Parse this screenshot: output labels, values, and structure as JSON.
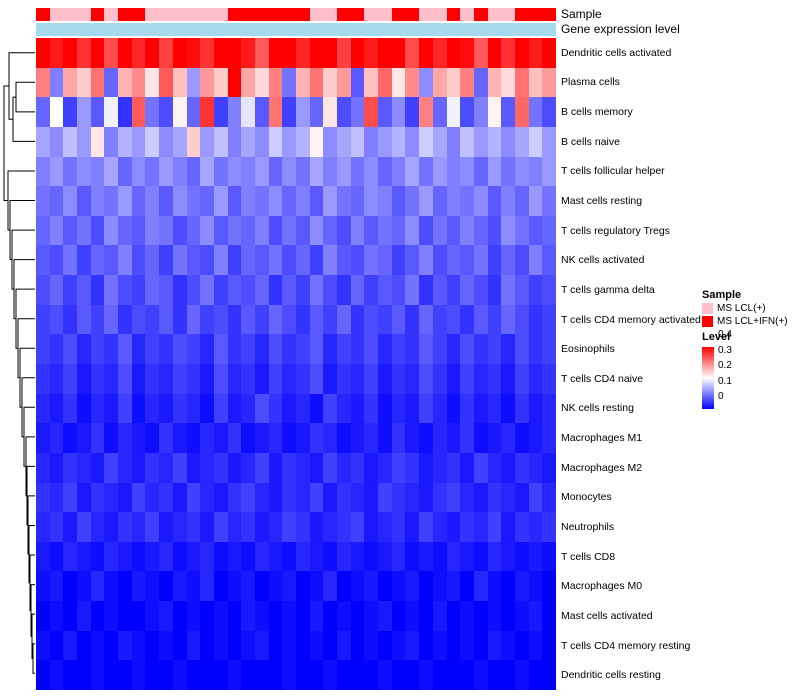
{
  "annotations": {
    "sample_label": "Sample",
    "gene_label": "Gene expression level",
    "sample_colors": {
      "MS LCL(+)": "#FFC0CB",
      "MS LCL+IFN(+)": "#FF0000"
    },
    "gene_bar_color": "#A6D9EC"
  },
  "legend": {
    "sample_title": "Sample",
    "sample_items": [
      {
        "label": "MS LCL(+)",
        "color": "#FFC0CB"
      },
      {
        "label": "MS LCL+IFN(+)",
        "color": "#FF0000"
      }
    ],
    "level_title": "Level",
    "level_ticks": [
      "0.4",
      "0.3",
      "0.2",
      "0.1",
      "0"
    ]
  },
  "chart_data": {
    "type": "heatmap",
    "rows": [
      "Dendritic cells activated",
      "Plasma cells",
      "B cells memory",
      "B cells naive",
      "T cells follicular helper",
      "Mast cells resting",
      "T cells regulatory Tregs",
      "NK cells activated",
      "T cells gamma delta",
      "T cells CD4 memory activated",
      "Eosinophils",
      "T cells CD4 naive",
      "NK cells resting",
      "Macrophages M1",
      "Macrophages M2",
      "Monocytes",
      "Neutrophils",
      "T cells CD8",
      "Macrophages M0",
      "Mast cells activated",
      "T cells CD4 memory resting",
      "Dendritic cells resting"
    ],
    "n_cols": 38,
    "color_scale": {
      "min": 0,
      "mid": 0.2,
      "max": 0.4,
      "min_color": "#0000FF",
      "mid_color": "#FFFFFF",
      "max_color": "#FF0000"
    },
    "column_sample_groups": [
      "MS LCL+IFN(+)",
      "MS LCL(+)",
      "MS LCL(+)",
      "MS LCL(+)",
      "MS LCL+IFN(+)",
      "MS LCL(+)",
      "MS LCL+IFN(+)",
      "MS LCL+IFN(+)",
      "MS LCL(+)",
      "MS LCL(+)",
      "MS LCL(+)",
      "MS LCL(+)",
      "MS LCL(+)",
      "MS LCL(+)",
      "MS LCL+IFN(+)",
      "MS LCL+IFN(+)",
      "MS LCL+IFN(+)",
      "MS LCL+IFN(+)",
      "MS LCL+IFN(+)",
      "MS LCL+IFN(+)",
      "MS LCL(+)",
      "MS LCL(+)",
      "MS LCL+IFN(+)",
      "MS LCL+IFN(+)",
      "MS LCL(+)",
      "MS LCL(+)",
      "MS LCL+IFN(+)",
      "MS LCL+IFN(+)",
      "MS LCL(+)",
      "MS LCL(+)",
      "MS LCL+IFN(+)",
      "MS LCL(+)",
      "MS LCL+IFN(+)",
      "MS LCL(+)",
      "MS LCL(+)",
      "MS LCL+IFN(+)",
      "MS LCL+IFN(+)",
      "MS LCL+IFN(+)"
    ],
    "values": [
      [
        0.42,
        0.38,
        0.45,
        0.36,
        0.4,
        0.34,
        0.43,
        0.37,
        0.41,
        0.35,
        0.44,
        0.39,
        0.36,
        0.42,
        0.45,
        0.38,
        0.33,
        0.4,
        0.44,
        0.37,
        0.45,
        0.41,
        0.35,
        0.43,
        0.38,
        0.45,
        0.4,
        0.34,
        0.42,
        0.37,
        0.45,
        0.39,
        0.33,
        0.41,
        0.36,
        0.44,
        0.38,
        0.42
      ],
      [
        0.3,
        0.1,
        0.27,
        0.24,
        0.31,
        0.08,
        0.26,
        0.29,
        0.22,
        0.33,
        0.25,
        0.12,
        0.28,
        0.24,
        0.4,
        0.27,
        0.23,
        0.3,
        0.09,
        0.26,
        0.31,
        0.24,
        0.28,
        0.07,
        0.25,
        0.32,
        0.22,
        0.29,
        0.11,
        0.27,
        0.24,
        0.3,
        0.08,
        0.26,
        0.23,
        0.31,
        0.25,
        0.28
      ],
      [
        0.08,
        0.2,
        0.05,
        0.12,
        0.07,
        0.19,
        0.04,
        0.33,
        0.09,
        0.06,
        0.21,
        0.08,
        0.36,
        0.05,
        0.1,
        0.18,
        0.07,
        0.31,
        0.05,
        0.12,
        0.08,
        0.22,
        0.06,
        0.09,
        0.34,
        0.07,
        0.11,
        0.05,
        0.3,
        0.08,
        0.19,
        0.06,
        0.1,
        0.21,
        0.07,
        0.32,
        0.09,
        0.06
      ],
      [
        0.13,
        0.11,
        0.15,
        0.12,
        0.22,
        0.1,
        0.14,
        0.12,
        0.16,
        0.11,
        0.13,
        0.24,
        0.12,
        0.15,
        0.1,
        0.13,
        0.11,
        0.16,
        0.12,
        0.14,
        0.21,
        0.11,
        0.13,
        0.15,
        0.1,
        0.12,
        0.14,
        0.11,
        0.16,
        0.13,
        0.1,
        0.15,
        0.12,
        0.14,
        0.11,
        0.13,
        0.16,
        0.12
      ],
      [
        0.1,
        0.12,
        0.09,
        0.11,
        0.1,
        0.13,
        0.08,
        0.11,
        0.09,
        0.12,
        0.1,
        0.08,
        0.13,
        0.09,
        0.11,
        0.1,
        0.12,
        0.08,
        0.11,
        0.09,
        0.13,
        0.1,
        0.12,
        0.09,
        0.11,
        0.08,
        0.1,
        0.13,
        0.09,
        0.12,
        0.1,
        0.11,
        0.08,
        0.12,
        0.09,
        0.11,
        0.1,
        0.12
      ],
      [
        0.09,
        0.08,
        0.11,
        0.07,
        0.1,
        0.09,
        0.12,
        0.08,
        0.1,
        0.07,
        0.11,
        0.09,
        0.08,
        0.12,
        0.07,
        0.1,
        0.09,
        0.11,
        0.08,
        0.1,
        0.07,
        0.12,
        0.09,
        0.08,
        0.11,
        0.1,
        0.07,
        0.09,
        0.12,
        0.08,
        0.1,
        0.09,
        0.11,
        0.07,
        0.1,
        0.08,
        0.12,
        0.09
      ],
      [
        0.08,
        0.1,
        0.07,
        0.09,
        0.06,
        0.11,
        0.08,
        0.07,
        0.1,
        0.09,
        0.06,
        0.08,
        0.11,
        0.07,
        0.09,
        0.08,
        0.1,
        0.06,
        0.09,
        0.07,
        0.11,
        0.08,
        0.06,
        0.1,
        0.07,
        0.09,
        0.08,
        0.11,
        0.06,
        0.09,
        0.07,
        0.1,
        0.08,
        0.06,
        0.11,
        0.09,
        0.07,
        0.08
      ],
      [
        0.07,
        0.06,
        0.09,
        0.05,
        0.08,
        0.07,
        0.1,
        0.06,
        0.08,
        0.05,
        0.09,
        0.07,
        0.06,
        0.1,
        0.05,
        0.08,
        0.07,
        0.09,
        0.06,
        0.08,
        0.05,
        0.1,
        0.07,
        0.06,
        0.09,
        0.08,
        0.05,
        0.07,
        0.1,
        0.06,
        0.08,
        0.07,
        0.09,
        0.05,
        0.08,
        0.06,
        0.1,
        0.07
      ],
      [
        0.06,
        0.08,
        0.05,
        0.07,
        0.04,
        0.09,
        0.06,
        0.05,
        0.08,
        0.07,
        0.04,
        0.06,
        0.09,
        0.05,
        0.07,
        0.06,
        0.08,
        0.04,
        0.07,
        0.05,
        0.09,
        0.06,
        0.04,
        0.08,
        0.05,
        0.07,
        0.06,
        0.09,
        0.04,
        0.07,
        0.05,
        0.08,
        0.06,
        0.04,
        0.09,
        0.07,
        0.05,
        0.06
      ],
      [
        0.05,
        0.06,
        0.04,
        0.07,
        0.05,
        0.08,
        0.04,
        0.06,
        0.05,
        0.07,
        0.04,
        0.08,
        0.05,
        0.06,
        0.04,
        0.07,
        0.05,
        0.08,
        0.06,
        0.04,
        0.07,
        0.05,
        0.08,
        0.04,
        0.06,
        0.05,
        0.07,
        0.04,
        0.08,
        0.05,
        0.06,
        0.04,
        0.07,
        0.05,
        0.08,
        0.06,
        0.04,
        0.05
      ],
      [
        0.05,
        0.04,
        0.06,
        0.03,
        0.05,
        0.04,
        0.07,
        0.03,
        0.05,
        0.04,
        0.06,
        0.05,
        0.03,
        0.07,
        0.04,
        0.05,
        0.03,
        0.06,
        0.04,
        0.05,
        0.07,
        0.03,
        0.05,
        0.04,
        0.06,
        0.03,
        0.05,
        0.04,
        0.07,
        0.05,
        0.03,
        0.06,
        0.04,
        0.05,
        0.03,
        0.06,
        0.04,
        0.05
      ],
      [
        0.04,
        0.03,
        0.05,
        0.02,
        0.04,
        0.03,
        0.06,
        0.02,
        0.04,
        0.03,
        0.05,
        0.04,
        0.02,
        0.06,
        0.03,
        0.04,
        0.02,
        0.05,
        0.03,
        0.04,
        0.06,
        0.02,
        0.04,
        0.03,
        0.05,
        0.02,
        0.04,
        0.03,
        0.06,
        0.04,
        0.02,
        0.05,
        0.03,
        0.04,
        0.02,
        0.05,
        0.03,
        0.04
      ],
      [
        0.03,
        0.02,
        0.04,
        0.01,
        0.03,
        0.02,
        0.05,
        0.01,
        0.03,
        0.02,
        0.04,
        0.03,
        0.01,
        0.05,
        0.02,
        0.03,
        0.06,
        0.04,
        0.02,
        0.03,
        0.01,
        0.05,
        0.03,
        0.02,
        0.04,
        0.01,
        0.03,
        0.02,
        0.05,
        0.03,
        0.01,
        0.04,
        0.02,
        0.03,
        0.01,
        0.04,
        0.02,
        0.03
      ],
      [
        0.02,
        0.03,
        0.01,
        0.02,
        0.04,
        0.01,
        0.03,
        0.02,
        0.01,
        0.04,
        0.02,
        0.01,
        0.03,
        0.02,
        0.04,
        0.01,
        0.02,
        0.03,
        0.01,
        0.02,
        0.04,
        0.03,
        0.01,
        0.02,
        0.03,
        0.01,
        0.04,
        0.02,
        0.01,
        0.03,
        0.02,
        0.04,
        0.01,
        0.02,
        0.03,
        0.01,
        0.02,
        0.03
      ],
      [
        0.03,
        0.02,
        0.04,
        0.03,
        0.02,
        0.05,
        0.03,
        0.02,
        0.04,
        0.03,
        0.05,
        0.02,
        0.03,
        0.04,
        0.02,
        0.03,
        0.05,
        0.02,
        0.04,
        0.03,
        0.02,
        0.05,
        0.03,
        0.04,
        0.02,
        0.03,
        0.05,
        0.04,
        0.02,
        0.03,
        0.04,
        0.02,
        0.05,
        0.03,
        0.02,
        0.04,
        0.03,
        0.02
      ],
      [
        0.04,
        0.03,
        0.05,
        0.02,
        0.04,
        0.03,
        0.02,
        0.05,
        0.03,
        0.04,
        0.02,
        0.05,
        0.03,
        0.02,
        0.04,
        0.05,
        0.03,
        0.02,
        0.04,
        0.03,
        0.05,
        0.02,
        0.04,
        0.03,
        0.02,
        0.05,
        0.04,
        0.03,
        0.02,
        0.04,
        0.05,
        0.03,
        0.02,
        0.04,
        0.03,
        0.02,
        0.05,
        0.03
      ],
      [
        0.03,
        0.04,
        0.02,
        0.05,
        0.03,
        0.02,
        0.04,
        0.03,
        0.05,
        0.02,
        0.03,
        0.04,
        0.02,
        0.05,
        0.03,
        0.04,
        0.02,
        0.03,
        0.05,
        0.04,
        0.02,
        0.03,
        0.04,
        0.05,
        0.02,
        0.03,
        0.04,
        0.02,
        0.05,
        0.03,
        0.02,
        0.04,
        0.03,
        0.05,
        0.02,
        0.04,
        0.03,
        0.04
      ],
      [
        0.02,
        0.01,
        0.03,
        0.02,
        0.01,
        0.03,
        0.02,
        0.01,
        0.02,
        0.03,
        0.01,
        0.02,
        0.03,
        0.01,
        0.02,
        0.01,
        0.03,
        0.02,
        0.01,
        0.03,
        0.02,
        0.01,
        0.03,
        0.02,
        0.01,
        0.02,
        0.03,
        0.01,
        0.02,
        0.01,
        0.03,
        0.02,
        0.01,
        0.03,
        0.02,
        0.01,
        0.02,
        0.01
      ],
      [
        0.01,
        0.02,
        0.0,
        0.01,
        0.03,
        0.01,
        0.0,
        0.02,
        0.01,
        0.0,
        0.02,
        0.01,
        0.03,
        0.0,
        0.01,
        0.02,
        0.0,
        0.01,
        0.02,
        0.0,
        0.01,
        0.03,
        0.0,
        0.01,
        0.02,
        0.0,
        0.01,
        0.02,
        0.0,
        0.01,
        0.02,
        0.0,
        0.03,
        0.01,
        0.0,
        0.02,
        0.01,
        0.0
      ],
      [
        0.0,
        0.01,
        0.0,
        0.02,
        0.0,
        0.01,
        0.0,
        0.0,
        0.01,
        0.02,
        0.0,
        0.01,
        0.0,
        0.01,
        0.0,
        0.02,
        0.01,
        0.0,
        0.01,
        0.0,
        0.02,
        0.0,
        0.01,
        0.0,
        0.01,
        0.02,
        0.0,
        0.01,
        0.0,
        0.02,
        0.0,
        0.01,
        0.0,
        0.01,
        0.0,
        0.01,
        0.02,
        0.0
      ],
      [
        0.01,
        0.0,
        0.02,
        0.0,
        0.01,
        0.0,
        0.02,
        0.01,
        0.0,
        0.01,
        0.0,
        0.02,
        0.0,
        0.01,
        0.0,
        0.01,
        0.02,
        0.0,
        0.01,
        0.0,
        0.01,
        0.0,
        0.02,
        0.0,
        0.01,
        0.0,
        0.01,
        0.02,
        0.0,
        0.01,
        0.0,
        0.01,
        0.0,
        0.02,
        0.01,
        0.0,
        0.01,
        0.0
      ],
      [
        0.0,
        0.01,
        0.0,
        0.0,
        0.01,
        0.0,
        0.0,
        0.01,
        0.0,
        0.0,
        0.01,
        0.0,
        0.0,
        0.0,
        0.01,
        0.0,
        0.0,
        0.0,
        0.01,
        0.0,
        0.0,
        0.01,
        0.0,
        0.0,
        0.0,
        0.01,
        0.0,
        0.0,
        0.01,
        0.0,
        0.0,
        0.0,
        0.01,
        0.0,
        0.0,
        0.01,
        0.0,
        0.0
      ]
    ]
  }
}
